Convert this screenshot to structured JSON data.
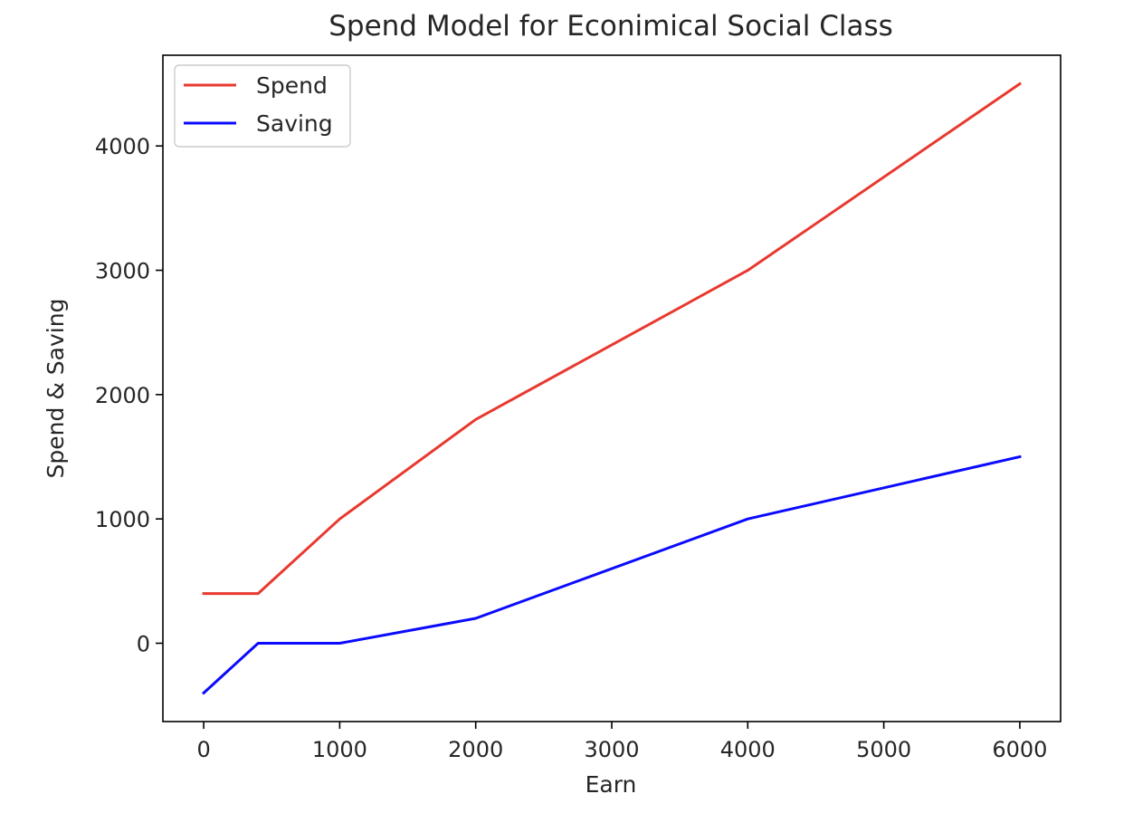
{
  "chart_data": {
    "type": "line",
    "title": "Spend Model for Econimical Social Class",
    "xlabel": "Earn",
    "ylabel": "Spend & Saving",
    "x": [
      0,
      400,
      1000,
      2000,
      4000,
      6000
    ],
    "series": [
      {
        "name": "Spend",
        "color": "#e8392f",
        "values": [
          400,
          400,
          1000,
          1800,
          3000,
          4500
        ]
      },
      {
        "name": "Saving",
        "color": "#0a0aff",
        "values": [
          -400,
          0,
          0,
          200,
          1000,
          1500
        ]
      }
    ],
    "xlim": [
      -300,
      6300
    ],
    "ylim": [
      -630,
      4730
    ],
    "xticks": [
      0,
      1000,
      2000,
      3000,
      4000,
      5000,
      6000
    ],
    "yticks": [
      0,
      1000,
      2000,
      3000,
      4000
    ],
    "grid": false,
    "legend_position": "top-left"
  }
}
